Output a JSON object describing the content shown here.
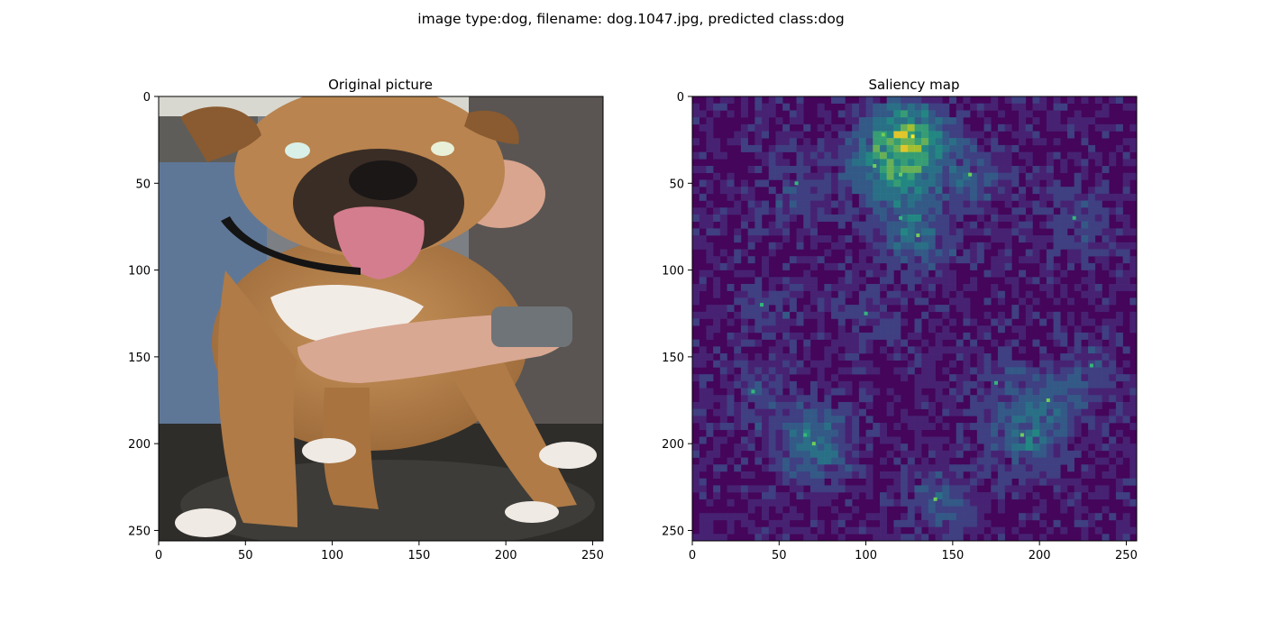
{
  "figure": {
    "suptitle": "image type:dog, filename: dog.1047.jpg, predicted class:dog"
  },
  "panels": [
    {
      "title": "Original picture",
      "picture": "photo of a tan boxer dog with a white chest and pink tongue out, held by a person's hands and arm, sitting on a dark rug"
    },
    {
      "title": "Saliency map",
      "colormap": "viridis"
    }
  ],
  "chart_data": [
    {
      "type": "heatmap",
      "subtype": "image",
      "title": "Original picture",
      "xlim": [
        0,
        256
      ],
      "ylim": [
        256,
        0
      ],
      "xticks": [
        0,
        50,
        100,
        150,
        200,
        250
      ],
      "yticks": [
        0,
        50,
        100,
        150,
        200,
        250
      ],
      "xtick_labels": [
        "0",
        "50",
        "100",
        "150",
        "200",
        "250"
      ],
      "ytick_labels": [
        "0",
        "50",
        "100",
        "150",
        "200",
        "250"
      ],
      "grid": false
    },
    {
      "type": "heatmap",
      "title": "Saliency map",
      "colormap": "viridis",
      "xlim": [
        0,
        256
      ],
      "ylim": [
        256,
        0
      ],
      "xticks": [
        0,
        50,
        100,
        150,
        200,
        250
      ],
      "yticks": [
        0,
        50,
        100,
        150,
        200,
        250
      ],
      "xtick_labels": [
        "0",
        "50",
        "100",
        "150",
        "200",
        "250"
      ],
      "ytick_labels": [
        "0",
        "50",
        "100",
        "150",
        "200",
        "250"
      ],
      "grid": false,
      "hotspots": [
        {
          "x": 127,
          "y": 23,
          "intensity": 1.0
        },
        {
          "x": 110,
          "y": 22,
          "intensity": 0.6
        },
        {
          "x": 105,
          "y": 40,
          "intensity": 0.45
        },
        {
          "x": 120,
          "y": 45,
          "intensity": 0.4
        },
        {
          "x": 160,
          "y": 45,
          "intensity": 0.4
        },
        {
          "x": 130,
          "y": 80,
          "intensity": 0.45
        },
        {
          "x": 120,
          "y": 70,
          "intensity": 0.35
        },
        {
          "x": 60,
          "y": 50,
          "intensity": 0.3
        },
        {
          "x": 70,
          "y": 200,
          "intensity": 0.45
        },
        {
          "x": 65,
          "y": 195,
          "intensity": 0.35
        },
        {
          "x": 190,
          "y": 195,
          "intensity": 0.6
        },
        {
          "x": 205,
          "y": 175,
          "intensity": 0.4
        },
        {
          "x": 175,
          "y": 165,
          "intensity": 0.3
        },
        {
          "x": 140,
          "y": 232,
          "intensity": 0.45
        },
        {
          "x": 40,
          "y": 120,
          "intensity": 0.25
        },
        {
          "x": 220,
          "y": 70,
          "intensity": 0.3
        },
        {
          "x": 100,
          "y": 125,
          "intensity": 0.25
        },
        {
          "x": 230,
          "y": 155,
          "intensity": 0.3
        },
        {
          "x": 35,
          "y": 170,
          "intensity": 0.3
        }
      ]
    }
  ]
}
